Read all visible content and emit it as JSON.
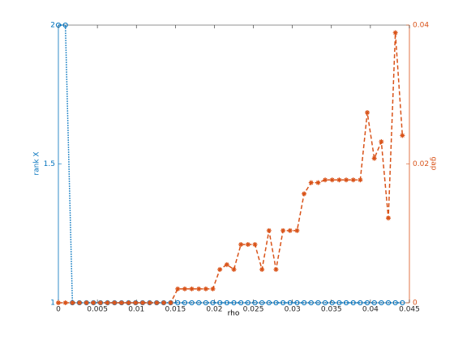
{
  "chart_data": {
    "type": "line",
    "xlabel": "rho",
    "ylabel": "rank X",
    "y2label": "gap",
    "x": [
      0,
      0.0009,
      0.0018,
      0.0027,
      0.0036,
      0.0045,
      0.0054,
      0.0063,
      0.0072,
      0.0081,
      0.009,
      0.0099,
      0.0108,
      0.0117,
      0.0126,
      0.0135,
      0.0144,
      0.0153,
      0.0162,
      0.0171,
      0.018,
      0.0189,
      0.0198,
      0.0207,
      0.0216,
      0.0225,
      0.0234,
      0.0243,
      0.0252,
      0.0261,
      0.027,
      0.0279,
      0.0288,
      0.0297,
      0.0306,
      0.0315,
      0.0324,
      0.0333,
      0.0342,
      0.0351,
      0.036,
      0.0369,
      0.0378,
      0.0387,
      0.0396,
      0.0405,
      0.0414,
      0.0423,
      0.0432,
      0.0441
    ],
    "series": [
      {
        "name": "rank X",
        "color": "#0072bd",
        "marker": "circle",
        "line": "dotted",
        "values": [
          2,
          2,
          1,
          1,
          1,
          1,
          1,
          1,
          1,
          1,
          1,
          1,
          1,
          1,
          1,
          1,
          1,
          1,
          1,
          1,
          1,
          1,
          1,
          1,
          1,
          1,
          1,
          1,
          1,
          1,
          1,
          1,
          1,
          1,
          1,
          1,
          1,
          1,
          1,
          1,
          1,
          1,
          1,
          1,
          1,
          1,
          1,
          1,
          1,
          1
        ]
      },
      {
        "name": "gap",
        "color": "#d95319",
        "marker": "asterisk",
        "line": "dashed",
        "axis": "y2",
        "values": [
          0,
          0,
          0,
          0,
          0,
          0,
          0,
          0,
          0,
          0,
          0,
          0,
          0,
          0,
          0,
          0,
          0,
          0.002,
          0.002,
          0.002,
          0.002,
          0.002,
          0.002,
          0.0048,
          0.0055,
          0.0048,
          0.0084,
          0.0084,
          0.0084,
          0.0048,
          0.0104,
          0.0048,
          0.0104,
          0.0104,
          0.0104,
          0.0157,
          0.0173,
          0.0173,
          0.0177,
          0.0177,
          0.0177,
          0.0177,
          0.0177,
          0.0177,
          0.0274,
          0.0208,
          0.0232,
          0.0122,
          0.0389,
          0.0241
        ]
      }
    ],
    "xlim": [
      0,
      0.045
    ],
    "xticks": [
      0,
      0.005,
      0.01,
      0.015,
      0.02,
      0.025,
      0.03,
      0.035,
      0.04,
      0.045
    ],
    "ylim": [
      1,
      2
    ],
    "yticks": [
      1,
      1.5,
      2
    ],
    "y2lim": [
      0,
      0.04
    ],
    "y2ticks": [
      0,
      0.02,
      0.04
    ]
  }
}
